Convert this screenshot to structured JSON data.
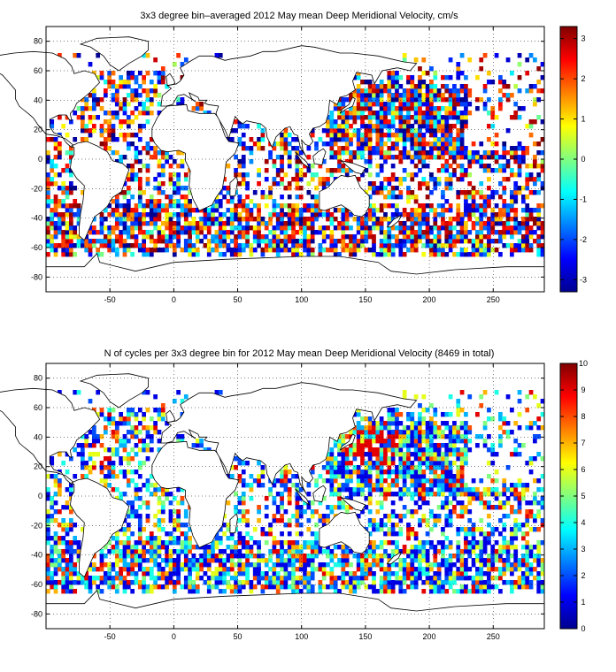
{
  "chart_data": [
    {
      "type": "heatmap",
      "title": "3x3 degree bin–averaged 2012 May mean Deep Meridional Velocity, cm/s",
      "xlim": [
        -100,
        290
      ],
      "ylim": [
        -90,
        90
      ],
      "xticks": [
        -50,
        0,
        50,
        100,
        150,
        200,
        250
      ],
      "yticks": [
        80,
        60,
        40,
        20,
        0,
        -20,
        -40,
        -60,
        -80
      ],
      "colorbar": {
        "range": [
          -3.3,
          3.3
        ],
        "ticks": [
          3,
          2,
          1,
          0,
          -1,
          -2,
          -3
        ],
        "colormap": "jet"
      },
      "bin_size_deg": 3,
      "grid": true
    },
    {
      "type": "heatmap",
      "title": "N of cycles per 3x3 degree bin for 2012 May mean Deep Meridional Velocity (8469 in total)",
      "xlim": [
        -100,
        290
      ],
      "ylim": [
        -90,
        90
      ],
      "xticks": [
        -50,
        0,
        50,
        100,
        150,
        200,
        250
      ],
      "yticks": [
        80,
        60,
        40,
        20,
        0,
        -20,
        -40,
        -60,
        -80
      ],
      "colorbar": {
        "range": [
          0,
          10
        ],
        "ticks": [
          10,
          9,
          8,
          7,
          6,
          5,
          4,
          3,
          2,
          1,
          0
        ],
        "colormap": "jet"
      },
      "bin_size_deg": 3,
      "grid": true
    }
  ]
}
